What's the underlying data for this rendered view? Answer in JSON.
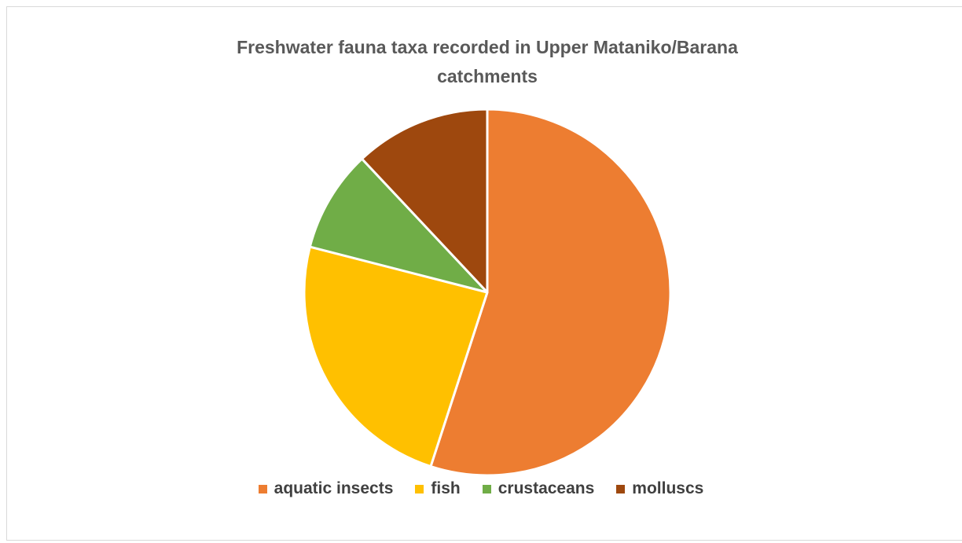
{
  "chart_data": {
    "type": "pie",
    "title": "Freshwater fauna taxa recorded in Upper Mataniko/Barana catchments",
    "categories": [
      "aquatic insects",
      "fish",
      "crustaceans",
      "molluscs"
    ],
    "values": [
      55,
      24,
      9,
      12
    ],
    "colors": [
      "#ED7D31",
      "#FFC000",
      "#70AD47",
      "#9E480E"
    ],
    "legend": "bottom"
  }
}
